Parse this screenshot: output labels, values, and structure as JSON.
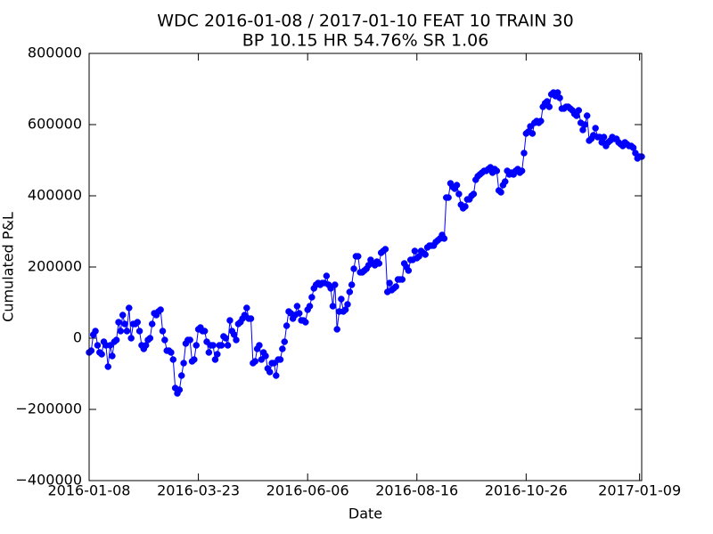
{
  "chart_data": {
    "type": "line",
    "title": "WDC 2016-01-08 / 2017-01-10 FEAT 10 TRAIN 30",
    "subtitle": "BP 10.15 HR 54.76%  SR 1.06",
    "x_label": "Date",
    "y_label": "Cumulated P&L",
    "color": "#0000ff",
    "xlim": [
      0,
      263
    ],
    "xticks": [
      {
        "value": 0,
        "label": "2016-01-08"
      },
      {
        "value": 52,
        "label": "2016-03-23"
      },
      {
        "value": 104,
        "label": "2016-06-06"
      },
      {
        "value": 156,
        "label": "2016-08-16"
      },
      {
        "value": 208,
        "label": "2016-10-26"
      },
      {
        "value": 262,
        "label": "2017-01-09"
      }
    ],
    "ylim": [
      -400000,
      800000
    ],
    "yticks": [
      {
        "value": -400000,
        "label": "−400000"
      },
      {
        "value": -200000,
        "label": "−200000"
      },
      0,
      200000,
      400000,
      600000,
      800000
    ],
    "values": [
      -40000,
      -35000,
      10000,
      20000,
      -20000,
      -40000,
      -45000,
      -10000,
      -20000,
      -80000,
      -20000,
      -50000,
      -10000,
      -5000,
      45000,
      20000,
      65000,
      40000,
      20000,
      85000,
      0,
      40000,
      40000,
      45000,
      20000,
      -20000,
      -30000,
      -20000,
      -5000,
      0,
      40000,
      70000,
      65000,
      75000,
      80000,
      20000,
      -5000,
      -35000,
      -35000,
      -40000,
      -60000,
      -140000,
      -155000,
      -145000,
      -105000,
      -70000,
      -15000,
      -5000,
      -5000,
      -65000,
      -60000,
      -20000,
      25000,
      30000,
      20000,
      20000,
      -10000,
      -40000,
      -20000,
      -20000,
      -60000,
      -45000,
      -20000,
      -20000,
      5000,
      0,
      -20000,
      50000,
      20000,
      10000,
      -5000,
      40000,
      45000,
      55000,
      65000,
      85000,
      55000,
      55000,
      -70000,
      -65000,
      -30000,
      -20000,
      -60000,
      -40000,
      -50000,
      -85000,
      -95000,
      -70000,
      -70000,
      -105000,
      -60000,
      -60000,
      -30000,
      -10000,
      35000,
      75000,
      70000,
      55000,
      65000,
      90000,
      70000,
      50000,
      50000,
      45000,
      80000,
      90000,
      115000,
      140000,
      150000,
      155000,
      150000,
      155000,
      155000,
      175000,
      150000,
      140000,
      90000,
      150000,
      25000,
      75000,
      110000,
      75000,
      80000,
      95000,
      130000,
      150000,
      195000,
      230000,
      230000,
      185000,
      185000,
      190000,
      195000,
      205000,
      220000,
      210000,
      205000,
      215000,
      210000,
      240000,
      245000,
      250000,
      130000,
      155000,
      135000,
      140000,
      145000,
      165000,
      165000,
      165000,
      210000,
      200000,
      190000,
      220000,
      220000,
      245000,
      225000,
      230000,
      245000,
      240000,
      235000,
      255000,
      260000,
      260000,
      260000,
      270000,
      275000,
      280000,
      290000,
      280000,
      395000,
      395000,
      435000,
      425000,
      420000,
      430000,
      405000,
      375000,
      365000,
      370000,
      390000,
      390000,
      400000,
      405000,
      445000,
      455000,
      460000,
      465000,
      470000,
      470000,
      475000,
      480000,
      465000,
      475000,
      470000,
      415000,
      410000,
      430000,
      440000,
      470000,
      460000,
      465000,
      460000,
      470000,
      475000,
      465000,
      470000,
      520000,
      575000,
      580000,
      595000,
      575000,
      605000,
      610000,
      605000,
      610000,
      650000,
      660000,
      665000,
      650000,
      685000,
      690000,
      680000,
      690000,
      675000,
      645000,
      645000,
      650000,
      650000,
      645000,
      640000,
      630000,
      625000,
      640000,
      605000,
      585000,
      600000,
      625000,
      555000,
      560000,
      570000,
      590000,
      565000,
      565000,
      550000,
      565000,
      540000,
      550000,
      555000,
      565000,
      560000,
      560000,
      550000,
      545000,
      540000,
      550000,
      545000,
      540000,
      540000,
      535000,
      520000,
      505000,
      510000,
      510000
    ]
  }
}
